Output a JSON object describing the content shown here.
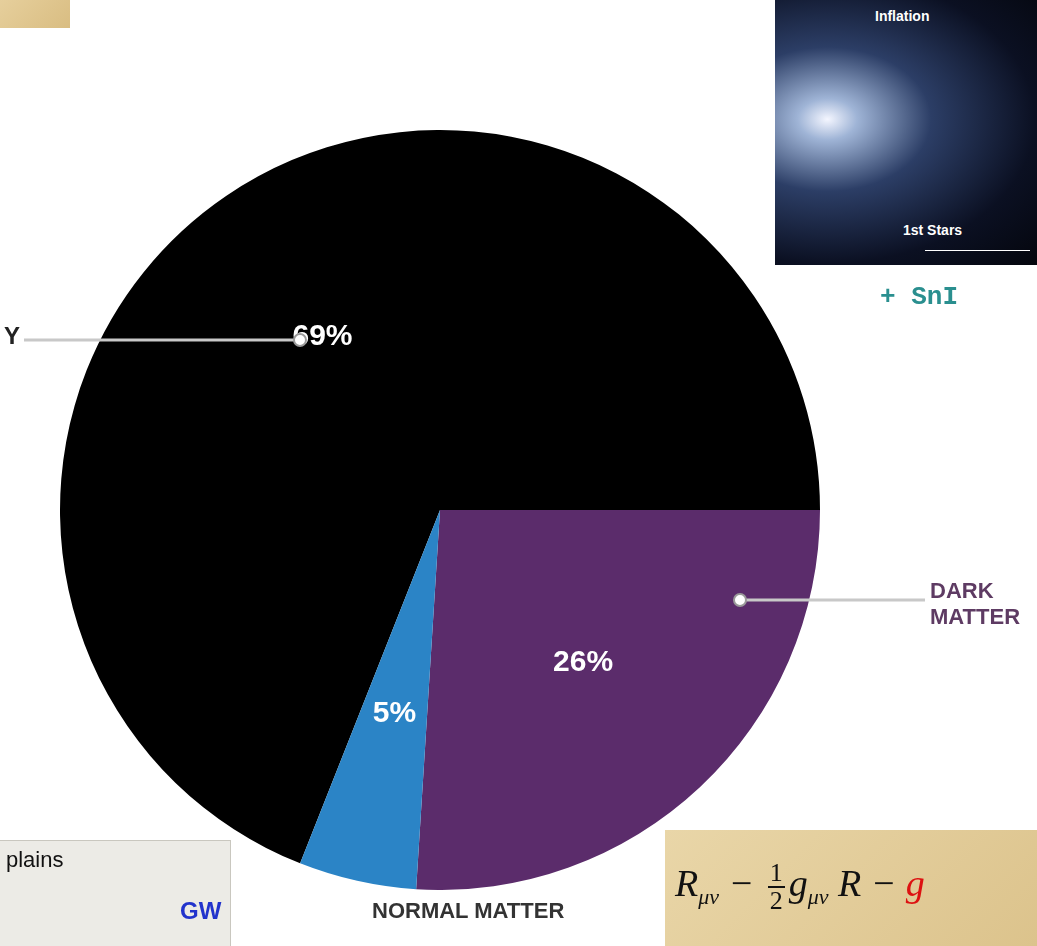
{
  "chart_data": {
    "type": "pie",
    "categories": [
      "Y",
      "DARK MATTER",
      "NORMAL MATTER"
    ],
    "values": [
      69,
      26,
      5
    ],
    "value_labels": [
      "69%",
      "26%",
      "5%"
    ],
    "colors": [
      "#000000",
      "#5b2c6b",
      "#2b84c6"
    ],
    "data_labels": true
  },
  "annotations": {
    "snia": "+ SnI",
    "box_text": "plains",
    "gw": "GW",
    "inset": [
      "Inflation",
      "1st Stars"
    ],
    "equation": [
      {
        "text": "R",
        "sub": "μν"
      },
      {
        "text": " − "
      },
      {
        "frac": [
          "1",
          "2"
        ]
      },
      {
        "text": "g",
        "sub": "μν"
      },
      {
        "text": " R − "
      },
      {
        "text": "g",
        "color": "#dd1111"
      }
    ]
  }
}
